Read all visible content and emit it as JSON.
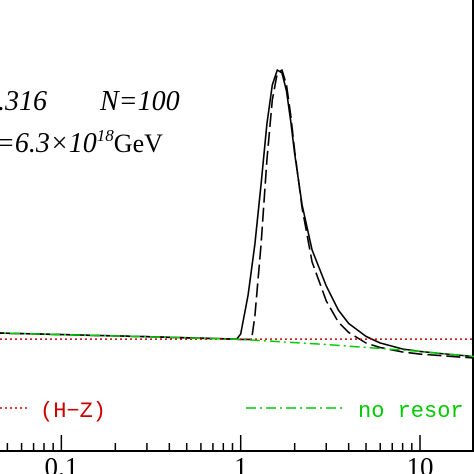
{
  "chart_data": {
    "type": "line",
    "title": "",
    "xlabel": "",
    "ylabel": "",
    "x_scale": "log",
    "xlim": [
      0.04,
      20
    ],
    "ylim": [
      0,
      1
    ],
    "x_ticks": [
      {
        "value": 0.1,
        "label": "0.1"
      },
      {
        "value": 1,
        "label": "1"
      },
      {
        "value": 10,
        "label": "10"
      }
    ],
    "annotations": {
      "line1_a": ".316",
      "line1_b": "N=100",
      "line2_a": "=6.3×10",
      "line2_sup": "18",
      "line2_unit": "GeV"
    },
    "legend": [
      {
        "label": "(H−Z)",
        "color": "#cc0000",
        "style": "dotted"
      },
      {
        "label": "no resor",
        "color": "#00cc00",
        "style": "dashdot"
      }
    ],
    "series": [
      {
        "color": "#000000",
        "style": "solid",
        "x": [
          0.04,
          0.1,
          0.3,
          0.95,
          1.0,
          1.1,
          1.2,
          1.3,
          1.4,
          1.5,
          1.6,
          1.7,
          1.8,
          1.9,
          2.0,
          2.2,
          2.5,
          3.0,
          3.5,
          4.0,
          5.0,
          6.0,
          8.0,
          10.0,
          13.0,
          20.0
        ],
        "y": [
          0.124,
          0.118,
          0.111,
          0.103,
          0.12,
          0.25,
          0.42,
          0.62,
          0.82,
          0.95,
          1.0,
          0.99,
          0.93,
          0.83,
          0.72,
          0.55,
          0.4,
          0.28,
          0.2,
          0.155,
          0.112,
          0.09,
          0.07,
          0.062,
          0.055,
          0.045
        ]
      },
      {
        "color": "#000000",
        "style": "dashed",
        "x": [
          0.04,
          0.1,
          0.3,
          1.0,
          1.15,
          1.2,
          1.3,
          1.4,
          1.5,
          1.6,
          1.7,
          1.8,
          1.9,
          2.0,
          2.2,
          2.5,
          3.0,
          3.5,
          4.0,
          5.0,
          6.0,
          8.0,
          10.0,
          13.0,
          20.0
        ],
        "y": [
          0.124,
          0.118,
          0.111,
          0.102,
          0.102,
          0.18,
          0.42,
          0.7,
          0.9,
          0.99,
          1.0,
          0.95,
          0.85,
          0.73,
          0.54,
          0.36,
          0.23,
          0.16,
          0.125,
          0.09,
          0.075,
          0.06,
          0.053,
          0.048,
          0.04
        ]
      },
      {
        "color": "#cc0000",
        "style": "dotted",
        "x": [
          0.04,
          20.0
        ],
        "y": [
          0.103,
          0.103
        ]
      },
      {
        "color": "#00cc00",
        "style": "dashdot",
        "x": [
          0.04,
          0.1,
          0.3,
          1.0,
          3.0,
          10.0,
          20.0
        ],
        "y": [
          0.124,
          0.118,
          0.111,
          0.102,
          0.085,
          0.062,
          0.045
        ]
      }
    ]
  }
}
